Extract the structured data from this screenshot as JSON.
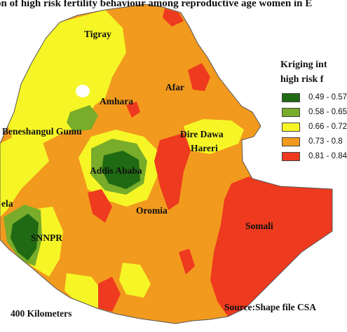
{
  "title": "on of high risk fertility behaviour among reproductive age women in E",
  "legend": {
    "title_line1": "Kriging int",
    "title_line2": "high risk f",
    "classes": [
      {
        "label": "0.49 - 0.57",
        "color": "#1f6a12"
      },
      {
        "label": "0.58 - 0.65",
        "color": "#78ac2a"
      },
      {
        "label": "0.66 - 0.72",
        "color": "#f6f626"
      },
      {
        "label": "0.73 - 0.8",
        "color": "#f29a1e"
      },
      {
        "label": "0.81 - 0.84",
        "color": "#ee3a1e"
      }
    ]
  },
  "regions": {
    "tigray": "Tigray",
    "afar": "Afar",
    "amhara": "Amhara",
    "beneshangul": "Beneshangul Gumu",
    "dire_dawa": "Dire Dawa",
    "hareri": "Hareri",
    "addis": "Addis Ababa",
    "oromia": "Oromia",
    "gambela": "ela",
    "snnpr": "SNNPR",
    "somali": "Somali"
  },
  "scale_bar": "400 Kilometers",
  "source": "Source:Shape file CSA"
}
